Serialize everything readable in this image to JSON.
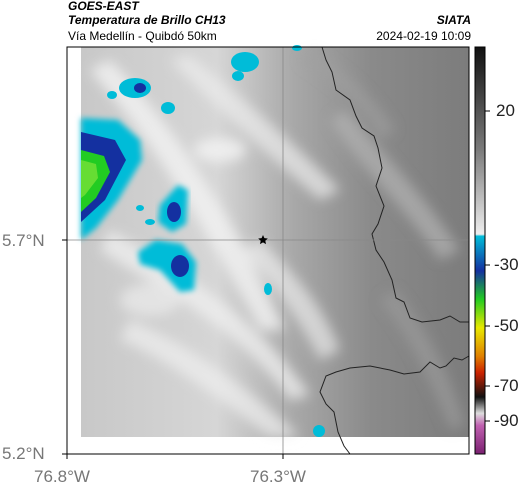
{
  "header": {
    "satellite": "GOES-EAST",
    "product": "Temperatura de Brillo CH13",
    "region": "Vía Medellín - Quibdó 50km",
    "agency": "SIATA",
    "datetime": "2024-02-19 10:09"
  },
  "map": {
    "lon_ticks": [
      "76.8°W",
      "76.3°W"
    ],
    "lat_ticks": [
      "5.7°N",
      "5.2°N"
    ],
    "marker": "star-marker"
  },
  "colorbar": {
    "labels": [
      "20",
      "-30",
      "-50",
      "-70",
      "-90"
    ],
    "colors": {
      "dark": "#111111",
      "cyan": "#00bcd8",
      "blue": "#1430a0",
      "green": "#22cc22",
      "yellow": "#e8e800",
      "red": "#cc2200",
      "magenta": "#a02890"
    }
  }
}
